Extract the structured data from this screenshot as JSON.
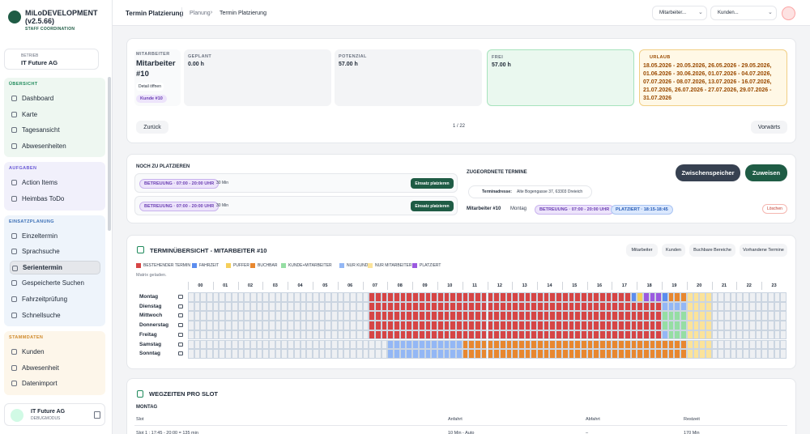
{
  "sidebar": {
    "brand": "MiLoDEVELOPMENT (v2.5.66)",
    "tagline": "STAFF COORDINATION",
    "company_label": "BETRIEB",
    "company": "IT Future AG",
    "sections": [
      {
        "title": "ÜBERSICHT",
        "items": [
          {
            "label": "Dashboard"
          },
          {
            "label": "Karte"
          },
          {
            "label": "Tagesansicht"
          },
          {
            "label": "Abwesenheiten"
          }
        ]
      },
      {
        "title": "AUFGABEN",
        "items": [
          {
            "label": "Action Items"
          },
          {
            "label": "Heimbas ToDo"
          }
        ]
      },
      {
        "title": "EINSATZPLANUNG",
        "items": [
          {
            "label": "Einzeltermin"
          },
          {
            "label": "Sprachsuche"
          },
          {
            "label": "Serientermin",
            "active": true
          },
          {
            "label": "Gespeicherte Suchen"
          },
          {
            "label": "Fahrzeitprüfung"
          },
          {
            "label": "Schnellsuche"
          }
        ]
      },
      {
        "title": "STAMMDATEN",
        "items": [
          {
            "label": "Kunden"
          },
          {
            "label": "Abwesenheit"
          },
          {
            "label": "Datenimport"
          }
        ]
      }
    ],
    "user": {
      "name": "IT Future AG",
      "role": "DEBUGMODUS"
    }
  },
  "topbar": {
    "title": "Termin Platzierung",
    "breadcrumb": [
      "Planung",
      "Termin Platzierung"
    ],
    "selects": [
      "Mitarbeiter...",
      "Kunden..."
    ]
  },
  "summary": {
    "employee_label": "MITARBEITER",
    "employee": "Mitarbeiter #10",
    "detail": "Detail öffnen",
    "customer": "Kunde #10",
    "stats": [
      {
        "label": "GEPLANT",
        "value": "0.00 h"
      },
      {
        "label": "POTENZIAL",
        "value": "57.00 h"
      },
      {
        "label": "FREI",
        "value": "57.00 h"
      }
    ],
    "vacation_label": "URLAUB",
    "vacation": "18.05.2026 - 20.05.2026, 26.05.2026 - 29.05.2026, 01.06.2026 - 30.06.2026, 01.07.2026 - 04.07.2026, 07.07.2026 - 08.07.2026, 13.07.2026 - 16.07.2026, 21.07.2026, 26.07.2026 - 27.07.2026, 29.07.2026 - 31.07.2026",
    "prev": "Zurück",
    "page": "1 / 22",
    "next": "Vorwärts"
  },
  "placement": {
    "open_title": "NOCH ZU PLATZIEREN",
    "open": [
      {
        "tag": "BETREUUNG · 07:00 - 20:00 UHR",
        "duration": "30 Min",
        "button": "Einsatz platzieren"
      },
      {
        "tag": "BETREUUNG · 07:00 - 20:00 UHR",
        "duration": "30 Min",
        "button": "Einsatz platzieren"
      }
    ],
    "assigned_title": "ZUGEORDNETE TERMINE",
    "address_label": "Terminadresse:",
    "address": "Alte Bogengasse 37, 63303 Dreieich",
    "save": "Zwischenspeicher",
    "assign": "Zuweisen",
    "row": {
      "employee": "Mitarbeiter #10",
      "day": "Montag",
      "tags": [
        "BETREUUNG · 07:00 - 20:00 UHR",
        "PLATZIERT · 18:15-18:45"
      ],
      "delete": "Löschen"
    }
  },
  "matrix": {
    "title": "TERMINÜBERSICHT - MITARBEITER #10",
    "filters": [
      "Mitarbeiter",
      "Kunden",
      "Buchbare Bereiche",
      "Vorhandene Termine"
    ],
    "legend": [
      {
        "code": "b",
        "label": "BESTEHENDER TERMIN",
        "color": "#d64545"
      },
      {
        "code": "f",
        "label": "FAHRZEIT",
        "color": "#5b8def"
      },
      {
        "code": "p",
        "label": "PUFFER",
        "color": "#f5cf5a"
      },
      {
        "code": "o",
        "label": "BUCHBAR",
        "color": "#e8872f"
      },
      {
        "code": "g",
        "label": "KUNDE+MITARBEITER",
        "color": "#95dea3"
      },
      {
        "code": "k",
        "label": "NUR KUNDE",
        "color": "#93b7f5"
      },
      {
        "code": "m",
        "label": "NUR MITARBEITER",
        "color": "#fbe39a"
      },
      {
        "code": "z",
        "label": "PLATZIERT",
        "color": "#9b59e0"
      }
    ],
    "empty_color": "#eef0f3",
    "note": "Matrix geladen.",
    "hours": [
      "00",
      "01",
      "02",
      "03",
      "04",
      "05",
      "06",
      "07",
      "08",
      "09",
      "10",
      "11",
      "12",
      "13",
      "14",
      "15",
      "16",
      "17",
      "18",
      "19",
      "20",
      "21",
      "22",
      "23"
    ],
    "rows": [
      {
        "day": "Montag",
        "slots": "eeeeeeeeeeeeeeeeeeeeeeeeeeeeebbbbbbbbbbbbbbbbbbbbbbbbbbbbbbbbbbbbbbbbbbfpzzzfooommmmeeeeeeeeeeee"
      },
      {
        "day": "Dienstag",
        "slots": "eeeeeeeeeeeeeeeeeeeeeeeeeeeeebbbbbbbbbbbbbbbbbbbbbbbbbbbbbbbbbbbbbbbbbbbbbbbkkkkmmmmeeeeeeeeeeee"
      },
      {
        "day": "Mittwoch",
        "slots": "eeeeeeeeeeeeeeeeeeeeeeeeeeeeebbbbbbbbbbbbbbbbbbbbbbbbbbbbbbbbbbbbbbbbbbbbbbbggggmmmmeeeeeeeeeeee"
      },
      {
        "day": "Donnerstag",
        "slots": "eeeeeeeeeeeeeeeeeeeeeeeeeeeeebbbbbbbbbbbbbbbbbbbbbbbbbbbbbbbbbbbbbbbbbbbbbbbggggmmmmeeeeeeeeeeee"
      },
      {
        "day": "Freitag",
        "slots": "eeeeeeeeeeeeeeeeeeeeeeeeeeeeebbbbbbbbbbbbbbbbbbbbbbbbbbbbbbbbbbbbbbbbbbbbbbbkgggmmmmeeeeeeeeeeee"
      },
      {
        "day": "Samstag",
        "slots": "eeeeeeeeeeeeeeeeeeeeeeeeeeeeeeeekkkkkkkkkkkkoooooooooooooooooooooooooooooooooooommmmeeeeeeeeeeee"
      },
      {
        "day": "Sonntag",
        "slots": "eeeeeeeeeeeeeeeeeeeeeeeeeeeeeeeekkkkkkkkkkkkoooooooooooooooooooooooooooooooooooommmmeeeeeeeeeeee"
      }
    ]
  },
  "travel": {
    "title": "WEGZEITEN PRO SLOT",
    "day": "MONTAG",
    "columns": [
      "Slot",
      "Anfahrt",
      "Abfahrt",
      "Restzeit"
    ],
    "rows": [
      [
        "Slot 1 : 17:45 - 20:00 = 135 min",
        "10 Min - Auto",
        "–",
        "170 Min"
      ]
    ]
  }
}
